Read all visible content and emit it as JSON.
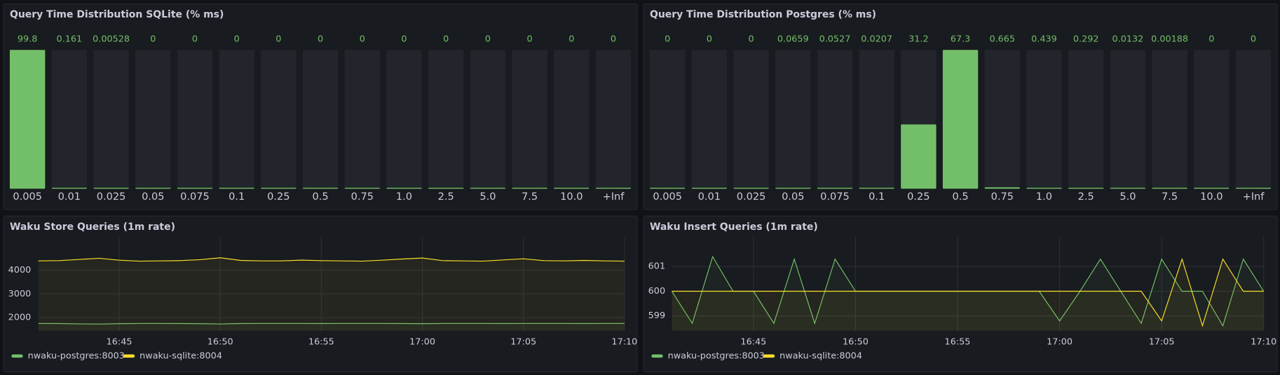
{
  "chart_data": [
    {
      "type": "bar",
      "title": "Query Time Distribution SQLite (% ms)",
      "color": "#73bf69",
      "categories": [
        "0.005",
        "0.01",
        "0.025",
        "0.05",
        "0.075",
        "0.1",
        "0.25",
        "0.5",
        "0.75",
        "1.0",
        "2.5",
        "5.0",
        "7.5",
        "10.0",
        "+Inf"
      ],
      "values": [
        99.8,
        0.161,
        0.00528,
        0,
        0,
        0,
        0,
        0,
        0,
        0,
        0,
        0,
        0,
        0,
        0
      ]
    },
    {
      "type": "bar",
      "title": "Query Time Distribution Postgres (% ms)",
      "color": "#73bf69",
      "categories": [
        "0.005",
        "0.01",
        "0.025",
        "0.05",
        "0.075",
        "0.1",
        "0.25",
        "0.5",
        "0.75",
        "1.0",
        "2.5",
        "5.0",
        "7.5",
        "10.0",
        "+Inf"
      ],
      "values": [
        0,
        0,
        0,
        0.0659,
        0.0527,
        0.0207,
        31.2,
        67.3,
        0.665,
        0.439,
        0.292,
        0.0132,
        0.00188,
        0,
        0
      ]
    },
    {
      "type": "line",
      "title": "Waku Store Queries (1m rate)",
      "x": [
        "16:41",
        "16:42",
        "16:43",
        "16:44",
        "16:45",
        "16:46",
        "16:47",
        "16:48",
        "16:49",
        "16:50",
        "16:51",
        "16:52",
        "16:53",
        "16:54",
        "16:55",
        "16:56",
        "16:57",
        "16:58",
        "16:59",
        "17:00",
        "17:01",
        "17:02",
        "17:03",
        "17:04",
        "17:05",
        "17:06",
        "17:07",
        "17:08",
        "17:09",
        "17:10"
      ],
      "xlim": [
        "16:41",
        "17:10"
      ],
      "xticks": [
        "16:45",
        "16:50",
        "16:55",
        "17:00",
        "17:05",
        "17:10"
      ],
      "ylim": [
        1450,
        5400
      ],
      "yticks": [
        2000,
        3000,
        4000
      ],
      "grid": true,
      "series": [
        {
          "name": "nwaku-postgres:8003",
          "color": "#73bf69",
          "values": [
            1760,
            1755,
            1740,
            1730,
            1750,
            1760,
            1760,
            1755,
            1750,
            1735,
            1755,
            1760,
            1760,
            1760,
            1755,
            1760,
            1760,
            1760,
            1755,
            1750,
            1760,
            1760,
            1760,
            1755,
            1760,
            1760,
            1760,
            1755,
            1760,
            1760
          ]
        },
        {
          "name": "nwaku-sqlite:8004",
          "color": "#fade2a",
          "values": [
            4390,
            4400,
            4450,
            4500,
            4420,
            4380,
            4390,
            4400,
            4440,
            4520,
            4410,
            4390,
            4390,
            4420,
            4400,
            4390,
            4380,
            4420,
            4470,
            4510,
            4400,
            4390,
            4380,
            4430,
            4480,
            4400,
            4390,
            4410,
            4390,
            4380
          ]
        }
      ]
    },
    {
      "type": "line",
      "title": "Waku Insert Queries (1m rate)",
      "x": [
        "16:41",
        "16:42",
        "16:43",
        "16:44",
        "16:45",
        "16:46",
        "16:47",
        "16:48",
        "16:49",
        "16:50",
        "16:51",
        "16:52",
        "16:53",
        "16:54",
        "16:55",
        "16:56",
        "16:57",
        "16:58",
        "16:59",
        "17:00",
        "17:01",
        "17:02",
        "17:03",
        "17:04",
        "17:05",
        "17:06",
        "17:07",
        "17:08",
        "17:09",
        "17:10"
      ],
      "xlim": [
        "16:41",
        "17:10"
      ],
      "xticks": [
        "16:45",
        "16:50",
        "16:55",
        "17:00",
        "17:05",
        "17:10"
      ],
      "ylim": [
        598.4,
        602.2
      ],
      "yticks": [
        599,
        600,
        601
      ],
      "grid": true,
      "series": [
        {
          "name": "nwaku-postgres:8003",
          "color": "#73bf69",
          "values": [
            600,
            598.7,
            601.4,
            600,
            600,
            598.7,
            601.3,
            598.7,
            601.3,
            600,
            600,
            600,
            600,
            600,
            600,
            600,
            600,
            600,
            600,
            598.8,
            600,
            601.3,
            600,
            598.7,
            601.3,
            600,
            600,
            598.6,
            601.3,
            600
          ]
        },
        {
          "name": "nwaku-sqlite:8004",
          "color": "#fade2a",
          "values": [
            600,
            600,
            600,
            600,
            600,
            600,
            600,
            600,
            600,
            600,
            600,
            600,
            600,
            600,
            600,
            600,
            600,
            600,
            600,
            600,
            600,
            600,
            600,
            600,
            598.8,
            601.3,
            598.6,
            601.3,
            600,
            600
          ]
        }
      ]
    }
  ]
}
